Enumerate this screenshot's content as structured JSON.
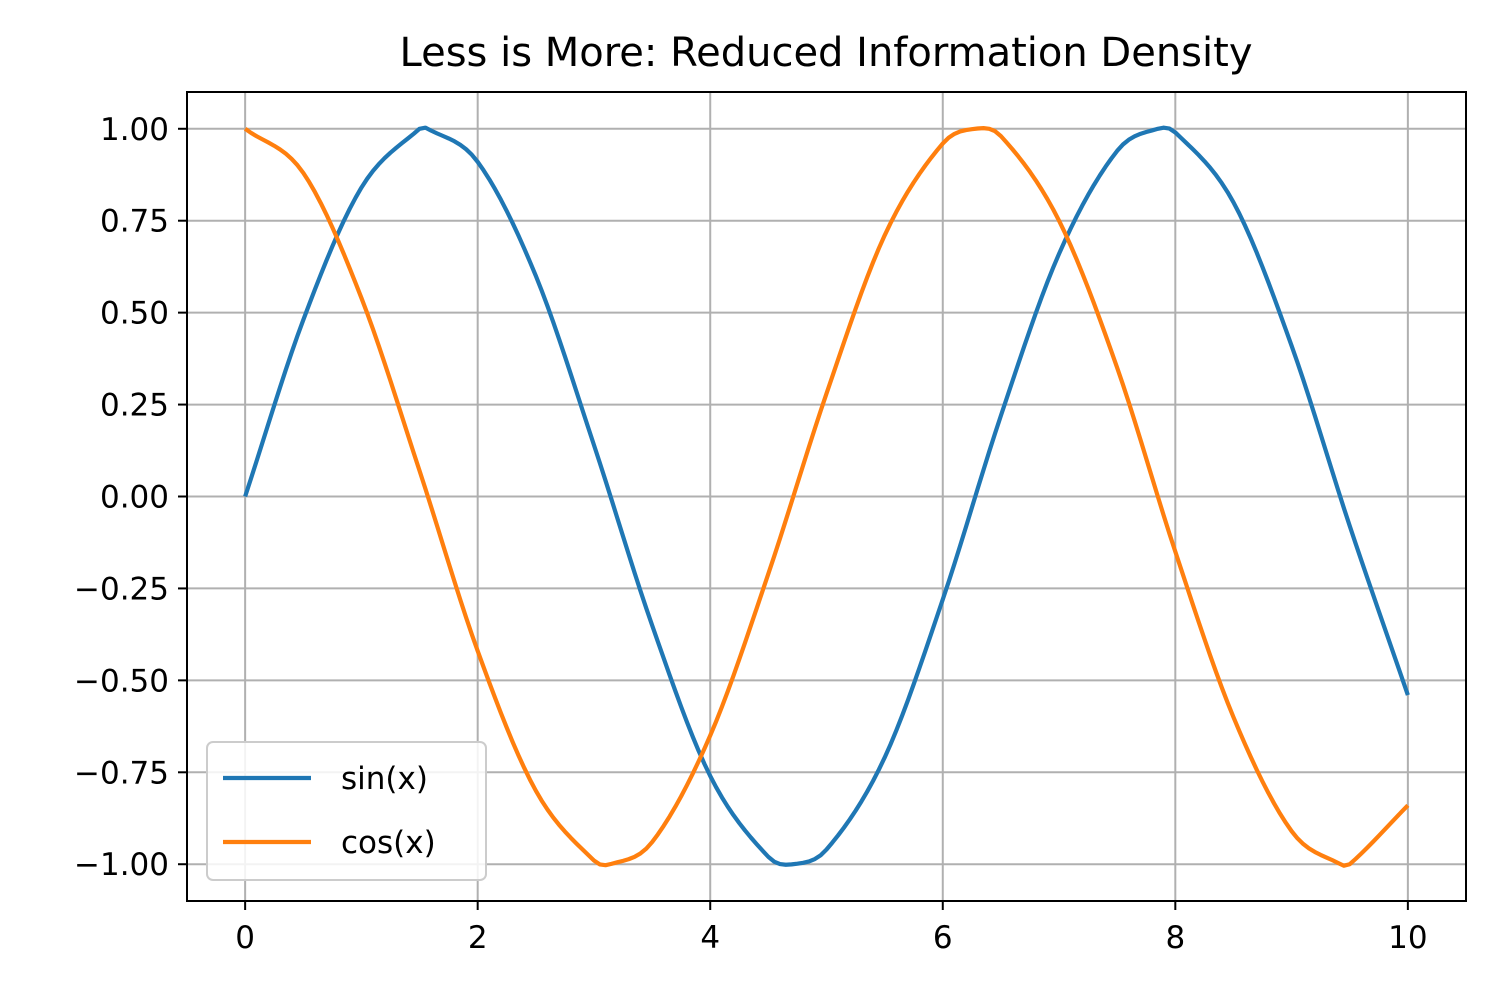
{
  "chart_data": {
    "type": "line",
    "title": "Less is More: Reduced Information Density",
    "xlabel": "",
    "ylabel": "",
    "xlim": [
      -0.5,
      10.5
    ],
    "ylim": [
      -1.1,
      1.1
    ],
    "x_ticks": [
      0,
      2,
      4,
      6,
      8,
      10
    ],
    "x_tick_labels": [
      "0",
      "2",
      "4",
      "6",
      "8",
      "10"
    ],
    "y_ticks": [
      1.0,
      0.75,
      0.5,
      0.25,
      0.0,
      -0.25,
      -0.5,
      -0.75,
      -1.0
    ],
    "y_tick_labels": [
      "1.00",
      "0.75",
      "0.50",
      "0.25",
      "0.00",
      "−0.25",
      "−0.50",
      "−0.75",
      "−1.00"
    ],
    "grid": true,
    "legend_position": "lower-left",
    "x_range": [
      0,
      10
    ],
    "series": [
      {
        "name": "sin(x)",
        "color": "#1f77b4",
        "x": [
          0,
          0.5,
          1,
          1.5,
          1.57,
          2,
          2.5,
          3,
          3.5,
          4,
          4.5,
          4.71,
          5,
          5.5,
          6,
          6.5,
          7,
          7.5,
          7.85,
          8,
          8.5,
          9,
          9.5,
          10
        ],
        "y": [
          0.0,
          0.48,
          0.84,
          1.0,
          1.0,
          0.91,
          0.6,
          0.14,
          -0.35,
          -0.76,
          -0.98,
          -1.0,
          -0.96,
          -0.71,
          -0.28,
          0.22,
          0.66,
          0.94,
          1.0,
          0.99,
          0.8,
          0.41,
          -0.08,
          -0.54
        ]
      },
      {
        "name": "cos(x)",
        "color": "#ff7f0e",
        "x": [
          0,
          0.5,
          1,
          1.5,
          2,
          2.5,
          3,
          3.14,
          3.5,
          4,
          4.5,
          5,
          5.5,
          6,
          6.28,
          6.5,
          7,
          7.5,
          8,
          8.5,
          9,
          9.42,
          9.5,
          10
        ],
        "y": [
          1.0,
          0.88,
          0.54,
          0.07,
          -0.42,
          -0.8,
          -0.99,
          -1.0,
          -0.94,
          -0.65,
          -0.21,
          0.28,
          0.71,
          0.96,
          1.0,
          0.98,
          0.75,
          0.35,
          -0.15,
          -0.6,
          -0.91,
          -1.0,
          -1.0,
          -0.84
        ]
      }
    ]
  }
}
